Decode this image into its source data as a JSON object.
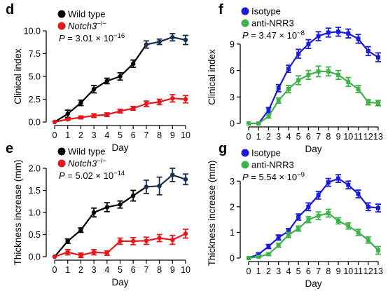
{
  "colors": {
    "wild_type": "#000000",
    "wild_type_late": "#1a2e4f",
    "notch3": "#e8171b",
    "isotype": "#1a1adb",
    "anti_nrr3": "#3fb34a"
  },
  "chart_data": [
    {
      "id": "d",
      "letter": "d",
      "type": "line",
      "xlabel": "Day",
      "ylabel": "Clinical index",
      "xlim": [
        0,
        10
      ],
      "ylim": [
        0,
        10
      ],
      "xticks": [
        0,
        1,
        2,
        3,
        4,
        5,
        6,
        7,
        8,
        9,
        10
      ],
      "yticks": [
        0.0,
        2.5,
        5.0,
        7.5,
        10.0
      ],
      "ytick_labels": [
        "0.0",
        "2.5",
        "5.0",
        "7.5",
        "10.0"
      ],
      "pvalue": {
        "base": "3.01",
        "exp": "−16"
      },
      "legend": [
        "Wild type",
        "Notch3"
      ],
      "legend_sup": [
        "",
        "−/−"
      ],
      "legend_italic": [
        false,
        true
      ],
      "series": [
        {
          "name": "Wild type",
          "color_key": "wild_type",
          "x": [
            0,
            1,
            2,
            3,
            4,
            5,
            6,
            7,
            8,
            9,
            10
          ],
          "y": [
            0,
            0.9,
            2.1,
            3.6,
            4.5,
            5.0,
            6.4,
            8.5,
            8.8,
            9.3,
            9.0
          ],
          "err": [
            0,
            0.4,
            0.3,
            0.4,
            0.3,
            0.4,
            0.4,
            0.4,
            0.3,
            0.4,
            0.5
          ]
        },
        {
          "name": "Notch3",
          "color_key": "notch3",
          "x": [
            0,
            1,
            2,
            3,
            4,
            5,
            6,
            7,
            8,
            9,
            10
          ],
          "y": [
            0,
            0.3,
            0.5,
            0.7,
            0.8,
            1.2,
            1.5,
            2.0,
            2.2,
            2.6,
            2.5
          ],
          "err": [
            0,
            0.1,
            0.15,
            0.2,
            0.2,
            0.2,
            0.2,
            0.3,
            0.3,
            0.4,
            0.4
          ]
        }
      ]
    },
    {
      "id": "e",
      "letter": "e",
      "type": "line",
      "xlabel": "Day",
      "ylabel": "Thickness increase (mm)",
      "xlim": [
        0,
        10
      ],
      "ylim": [
        0,
        2.0
      ],
      "xticks": [
        0,
        1,
        2,
        3,
        4,
        5,
        6,
        7,
        8,
        9,
        10
      ],
      "yticks": [
        0.0,
        0.5,
        1.0,
        1.5,
        2.0
      ],
      "ytick_labels": [
        "0.0",
        "0.5",
        "1.0",
        "1.5",
        "2.0"
      ],
      "pvalue": {
        "base": "5.02",
        "exp": "−14"
      },
      "legend": [
        "Wild type",
        "Notch3"
      ],
      "legend_sup": [
        "",
        "−/−"
      ],
      "legend_italic": [
        false,
        true
      ],
      "series": [
        {
          "name": "Wild type",
          "color_key": "wild_type",
          "x": [
            0,
            1,
            2,
            3,
            4,
            5,
            6,
            7,
            8,
            9,
            10
          ],
          "y": [
            0,
            0.35,
            0.6,
            1.0,
            1.12,
            1.18,
            1.38,
            1.58,
            1.6,
            1.85,
            1.75
          ],
          "err": [
            0,
            0.05,
            0.05,
            0.1,
            0.1,
            0.08,
            0.12,
            0.15,
            0.2,
            0.15,
            0.12
          ]
        },
        {
          "name": "Notch3",
          "color_key": "notch3",
          "x": [
            0,
            1,
            2,
            3,
            4,
            5,
            6,
            7,
            8,
            9,
            10
          ],
          "y": [
            0,
            0.1,
            0.03,
            0.1,
            0.08,
            0.35,
            0.35,
            0.36,
            0.42,
            0.38,
            0.52
          ],
          "err": [
            0,
            0.06,
            0.05,
            0.06,
            0.05,
            0.07,
            0.08,
            0.08,
            0.08,
            0.1,
            0.1
          ]
        }
      ]
    },
    {
      "id": "f",
      "letter": "f",
      "type": "line",
      "xlabel": "Day",
      "ylabel": "Clinical index",
      "xlim": [
        0,
        13
      ],
      "ylim": [
        0,
        10.5
      ],
      "xticks": [
        0,
        1,
        2,
        3,
        4,
        5,
        6,
        7,
        8,
        9,
        10,
        11,
        12,
        13
      ],
      "yticks": [
        0,
        3,
        6,
        9
      ],
      "ytick_labels": [
        "0",
        "3",
        "6",
        "9"
      ],
      "pvalue": {
        "base": "3.47",
        "exp": "−8"
      },
      "legend": [
        "Isotype",
        "anti-NRR3"
      ],
      "legend_sup": [
        "",
        ""
      ],
      "legend_italic": [
        false,
        false
      ],
      "series": [
        {
          "name": "Isotype",
          "color_key": "isotype",
          "x": [
            0,
            1,
            2,
            3,
            4,
            5,
            6,
            7,
            8,
            9,
            10,
            11,
            12,
            13
          ],
          "y": [
            0,
            0,
            1.5,
            4.0,
            6.2,
            7.9,
            9.0,
            9.9,
            10.3,
            10.4,
            10.2,
            9.6,
            8.2,
            7.5
          ],
          "err": [
            0,
            0,
            0.3,
            0.4,
            0.4,
            0.5,
            0.5,
            0.5,
            0.5,
            0.5,
            0.5,
            0.5,
            0.5,
            0.5
          ]
        },
        {
          "name": "anti-NRR3",
          "color_key": "anti_nrr3",
          "x": [
            0,
            1,
            2,
            3,
            4,
            5,
            6,
            7,
            8,
            9,
            10,
            11,
            12,
            13
          ],
          "y": [
            0,
            0,
            0.8,
            2.6,
            3.9,
            4.9,
            5.5,
            5.9,
            5.9,
            5.5,
            4.7,
            3.9,
            2.4,
            2.3
          ],
          "err": [
            0,
            0,
            0.2,
            0.3,
            0.4,
            0.5,
            0.5,
            0.6,
            0.5,
            0.5,
            0.5,
            0.4,
            0.3,
            0.3
          ]
        }
      ]
    },
    {
      "id": "g",
      "letter": "g",
      "type": "line",
      "xlabel": "Day",
      "ylabel": "Thickness increase (mm)",
      "xlim": [
        0,
        13
      ],
      "ylim": [
        0,
        3.5
      ],
      "xticks": [
        0,
        1,
        2,
        3,
        4,
        5,
        6,
        7,
        8,
        9,
        10,
        11,
        12,
        13
      ],
      "yticks": [
        0,
        1,
        2,
        3
      ],
      "ytick_labels": [
        "0",
        "1",
        "2",
        "3"
      ],
      "pvalue": {
        "base": "5.54",
        "exp": "−9"
      },
      "legend": [
        "Isotype",
        "anti-NRR3"
      ],
      "legend_sup": [
        "",
        ""
      ],
      "legend_italic": [
        false,
        false
      ],
      "series": [
        {
          "name": "Isotype",
          "color_key": "isotype",
          "x": [
            0,
            1,
            2,
            3,
            4,
            5,
            6,
            7,
            8,
            9,
            10,
            11,
            12,
            13
          ],
          "y": [
            0,
            0.15,
            0.45,
            0.8,
            1.05,
            1.6,
            2.0,
            2.45,
            2.95,
            3.1,
            2.85,
            2.5,
            2.0,
            1.95
          ],
          "err": [
            0,
            0.05,
            0.08,
            0.1,
            0.1,
            0.12,
            0.15,
            0.15,
            0.15,
            0.15,
            0.15,
            0.15,
            0.15,
            0.15
          ]
        },
        {
          "name": "anti-NRR3",
          "color_key": "anti_nrr3",
          "x": [
            0,
            1,
            2,
            3,
            4,
            5,
            6,
            7,
            8,
            9,
            10,
            11,
            12,
            13
          ],
          "y": [
            0,
            0.05,
            0.15,
            0.5,
            0.9,
            1.15,
            1.5,
            1.65,
            1.75,
            1.45,
            1.25,
            1.0,
            0.7,
            0.3
          ],
          "err": [
            0,
            0.03,
            0.05,
            0.08,
            0.1,
            0.1,
            0.12,
            0.15,
            0.15,
            0.12,
            0.12,
            0.12,
            0.12,
            0.15
          ]
        }
      ]
    }
  ]
}
